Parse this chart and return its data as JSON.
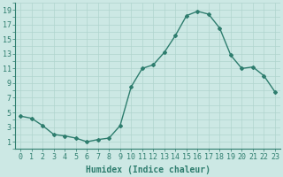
{
  "x": [
    0,
    1,
    2,
    3,
    4,
    5,
    6,
    7,
    8,
    9,
    10,
    11,
    12,
    13,
    14,
    15,
    16,
    17,
    18,
    19,
    20,
    21,
    22,
    23
  ],
  "y": [
    4.5,
    4.2,
    3.2,
    2.0,
    1.8,
    1.5,
    1.0,
    1.3,
    1.5,
    3.2,
    8.5,
    11.0,
    11.5,
    13.2,
    15.5,
    18.2,
    18.8,
    18.4,
    16.5,
    12.8,
    11.0,
    11.2,
    10.0,
    7.8
  ],
  "line_color": "#2e7d6e",
  "bg_color": "#cce8e4",
  "grid_color": "#b0d4ce",
  "xlabel": "Humidex (Indice chaleur)",
  "xlim": [
    -0.5,
    23.5
  ],
  "ylim": [
    0,
    20
  ],
  "yticks": [
    1,
    3,
    5,
    7,
    9,
    11,
    13,
    15,
    17,
    19
  ],
  "xticks": [
    0,
    1,
    2,
    3,
    4,
    5,
    6,
    7,
    8,
    9,
    10,
    11,
    12,
    13,
    14,
    15,
    16,
    17,
    18,
    19,
    20,
    21,
    22,
    23
  ],
  "marker": "D",
  "markersize": 2.0,
  "linewidth": 1.0,
  "xlabel_fontsize": 7,
  "tick_fontsize": 6
}
